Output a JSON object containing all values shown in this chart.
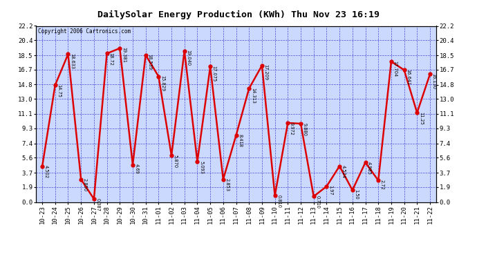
{
  "title": "DailySolar Energy Production (KWh) Thu Nov 23 16:19",
  "copyright": "Copyright 2006 Cartronics.com",
  "labels": [
    "10-23",
    "10-24",
    "10-25",
    "10-26",
    "10-27",
    "10-28",
    "10-29",
    "10-30",
    "10-31",
    "11-01",
    "11-02",
    "11-03",
    "11-04",
    "11-05",
    "11-06",
    "11-07",
    "11-08",
    "11-09",
    "11-10",
    "11-11",
    "11-12",
    "11-13",
    "11-14",
    "11-15",
    "11-16",
    "11-17",
    "11-18",
    "11-19",
    "11-20",
    "11-21",
    "11-22"
  ],
  "values": [
    4.502,
    14.75,
    18.633,
    2.85,
    0.387,
    18.72,
    19.381,
    4.69,
    18.539,
    15.829,
    5.87,
    19.04,
    5.093,
    17.075,
    2.853,
    8.418,
    14.313,
    17.209,
    0.81,
    9.972,
    9.88,
    0.71,
    1.97,
    4.524,
    1.5,
    4.985,
    2.72,
    17.704,
    16.641,
    11.25,
    16.13
  ],
  "value_labels": [
    "4.502",
    "14.75",
    "18.633",
    "2.850",
    "0.387",
    "18.72",
    "19.381",
    "4.69",
    "18.539",
    "15.829",
    "5.870",
    "19.040",
    "5.093",
    "17.075",
    "2.853",
    "8.418",
    "14.313",
    "17.209",
    "0.810",
    "9.972",
    "9.880",
    "0.710",
    "1.97",
    "4.524",
    "1.50",
    "4.985",
    "2.72",
    "17.704",
    "16.641",
    "11.25",
    "16.130"
  ],
  "yticks": [
    0.0,
    1.9,
    3.7,
    5.6,
    7.4,
    9.3,
    11.1,
    13.0,
    14.8,
    16.7,
    18.5,
    20.4,
    22.2
  ],
  "ymax": 22.2,
  "ymin": 0.0,
  "line_color": "#dd0000",
  "marker_color": "#dd0000",
  "grid_color": "#3333cc",
  "plot_bg": "#ccd9ff",
  "outer_bg": "#ffffff",
  "title_fontsize": 9.5,
  "tick_fontsize": 6.5,
  "label_fontsize": 4.8,
  "copyright_fontsize": 5.5,
  "marker_size": 3.5,
  "line_width": 1.8
}
